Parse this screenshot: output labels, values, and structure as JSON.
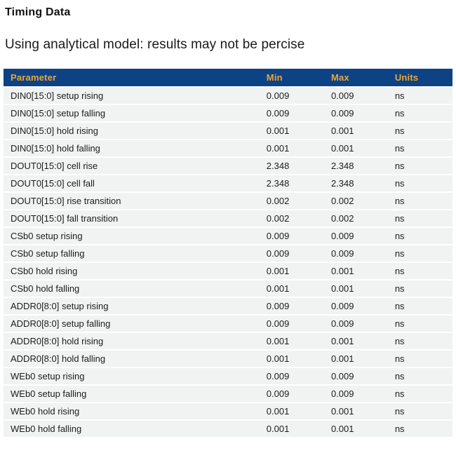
{
  "page": {
    "title": "Timing Data",
    "subtitle": "Using analytical model: results may not be percise"
  },
  "table": {
    "columns": [
      "Parameter",
      "Min",
      "Max",
      "Units"
    ],
    "rows": [
      {
        "parameter": "DIN0[15:0] setup rising",
        "min": "0.009",
        "max": "0.009",
        "units": "ns"
      },
      {
        "parameter": "DIN0[15:0] setup falling",
        "min": "0.009",
        "max": "0.009",
        "units": "ns"
      },
      {
        "parameter": "DIN0[15:0] hold rising",
        "min": "0.001",
        "max": "0.001",
        "units": "ns"
      },
      {
        "parameter": "DIN0[15:0] hold falling",
        "min": "0.001",
        "max": "0.001",
        "units": "ns"
      },
      {
        "parameter": "DOUT0[15:0] cell rise",
        "min": "2.348",
        "max": "2.348",
        "units": "ns"
      },
      {
        "parameter": "DOUT0[15:0] cell fall",
        "min": "2.348",
        "max": "2.348",
        "units": "ns"
      },
      {
        "parameter": "DOUT0[15:0] rise transition",
        "min": "0.002",
        "max": "0.002",
        "units": "ns"
      },
      {
        "parameter": "DOUT0[15:0] fall transition",
        "min": "0.002",
        "max": "0.002",
        "units": "ns"
      },
      {
        "parameter": "CSb0 setup rising",
        "min": "0.009",
        "max": "0.009",
        "units": "ns"
      },
      {
        "parameter": "CSb0 setup falling",
        "min": "0.009",
        "max": "0.009",
        "units": "ns"
      },
      {
        "parameter": "CSb0 hold rising",
        "min": "0.001",
        "max": "0.001",
        "units": "ns"
      },
      {
        "parameter": "CSb0 hold falling",
        "min": "0.001",
        "max": "0.001",
        "units": "ns"
      },
      {
        "parameter": "ADDR0[8:0] setup rising",
        "min": "0.009",
        "max": "0.009",
        "units": "ns"
      },
      {
        "parameter": "ADDR0[8:0] setup falling",
        "min": "0.009",
        "max": "0.009",
        "units": "ns"
      },
      {
        "parameter": "ADDR0[8:0] hold rising",
        "min": "0.001",
        "max": "0.001",
        "units": "ns"
      },
      {
        "parameter": "ADDR0[8:0] hold falling",
        "min": "0.001",
        "max": "0.001",
        "units": "ns"
      },
      {
        "parameter": "WEb0 setup rising",
        "min": "0.009",
        "max": "0.009",
        "units": "ns"
      },
      {
        "parameter": "WEb0 setup falling",
        "min": "0.009",
        "max": "0.009",
        "units": "ns"
      },
      {
        "parameter": "WEb0 hold rising",
        "min": "0.001",
        "max": "0.001",
        "units": "ns"
      },
      {
        "parameter": "WEb0 hold falling",
        "min": "0.001",
        "max": "0.001",
        "units": "ns"
      }
    ]
  },
  "colors": {
    "header_bg": "#0d4384",
    "header_text": "#f0a430",
    "row_bg": "#f1f2f2"
  }
}
